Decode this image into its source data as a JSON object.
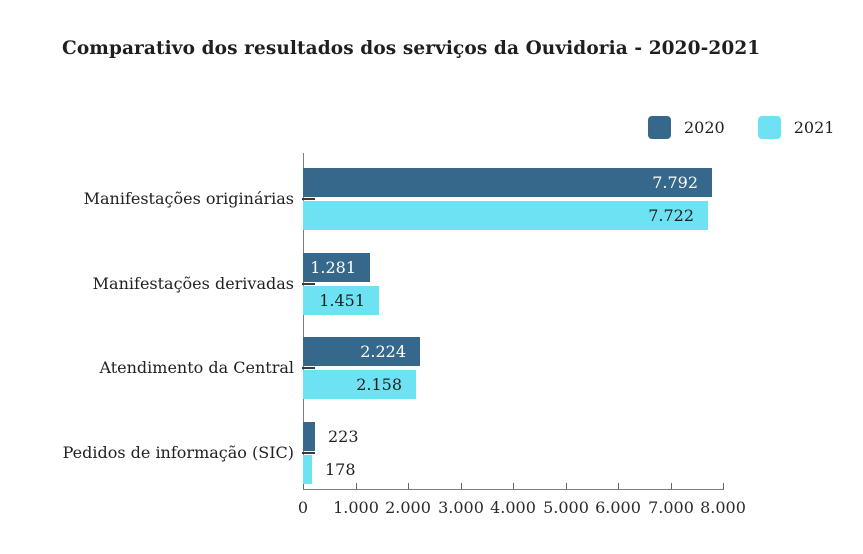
{
  "title": "Comparativo dos resultados dos serviços da Ouvidoria - 2020-2021",
  "colors": {
    "series_2020": "#36688C",
    "series_2021": "#6CE2F3",
    "title_text": "#1f1f1f",
    "axis": "#7d7d7d",
    "label_on_dark": "#ffffff",
    "label_on_light": "#1f1f1f"
  },
  "chart_data": {
    "type": "bar",
    "orientation": "horizontal",
    "title": "Comparativo dos resultados dos serviços da Ouvidoria - 2020-2021",
    "categories": [
      "Manifestações originárias",
      "Manifestações derivadas",
      "Atendimento da Central",
      "Pedidos de informação (SIC)"
    ],
    "series": [
      {
        "name": "2020",
        "color": "#36688C",
        "label_color": "#ffffff",
        "values": [
          7792,
          1281,
          2224,
          223
        ],
        "value_labels": [
          "7.792",
          "1.281",
          "2.224",
          "223"
        ]
      },
      {
        "name": "2021",
        "color": "#6CE2F3",
        "label_color": "#1f1f1f",
        "values": [
          7722,
          1451,
          2158,
          178
        ],
        "value_labels": [
          "7.722",
          "1.451",
          "2.158",
          "178"
        ]
      }
    ],
    "xlabel": "",
    "ylabel": "",
    "xlim": [
      0,
      8000
    ],
    "x_ticks": [
      0,
      1000,
      2000,
      3000,
      4000,
      5000,
      6000,
      7000,
      8000
    ],
    "x_tick_labels": [
      "0",
      "1.000",
      "2.000",
      "3.000",
      "4.000",
      "5.000",
      "6.000",
      "7.000",
      "8.000"
    ],
    "grid": false,
    "legend_position": "top-right"
  }
}
